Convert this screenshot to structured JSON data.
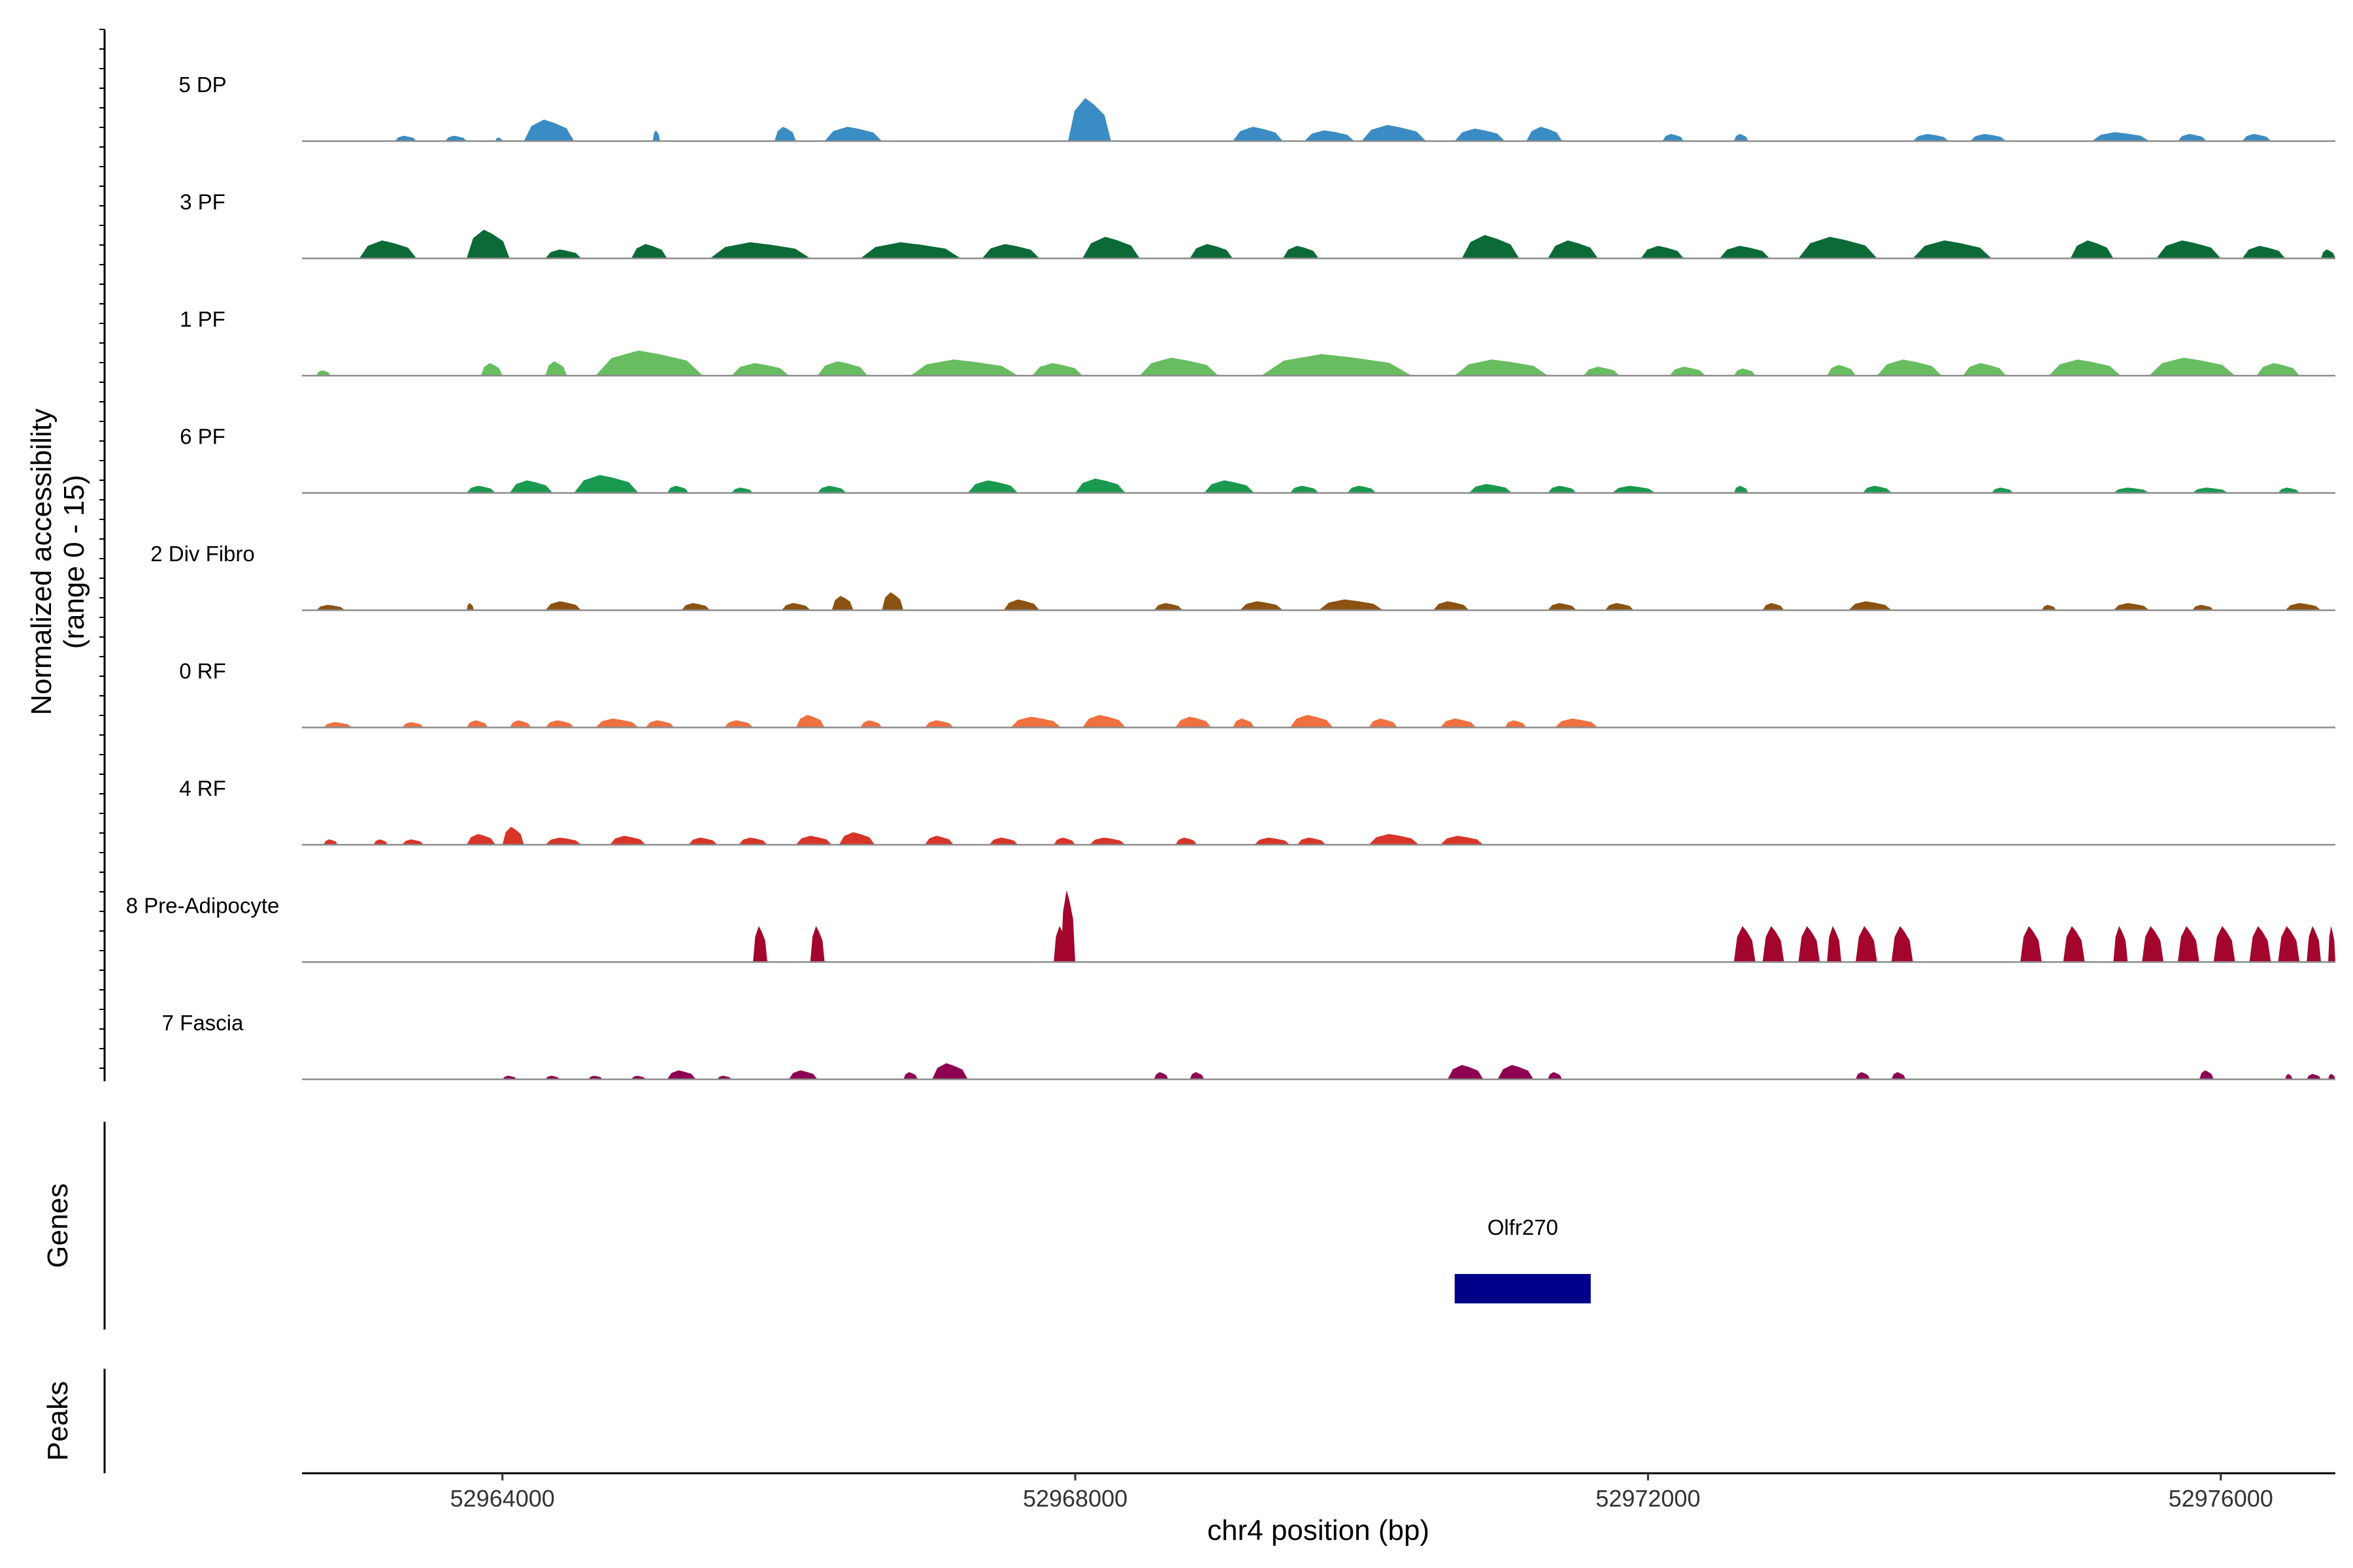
{
  "chart_data": {
    "type": "area",
    "title": "",
    "ylabel": "Normalized accessibility\n(range 0 - 15)",
    "ylabel_lines": [
      "Normalized accessibility",
      "(range 0 - 15)"
    ],
    "ylim": [
      0,
      15
    ],
    "xlabel": "chr4 position (bp)",
    "xlim": [
      52962600,
      52976800
    ],
    "x_ticks": [
      52964000,
      52968000,
      52972000,
      52976000
    ],
    "x_tick_labels": [
      "52964000",
      "52968000",
      "52972000",
      "52976000"
    ],
    "tracks": [
      {
        "name": "5 DP",
        "color": "#3B8CC4",
        "peaks": [
          [
            52963250,
            52963400,
            1.5
          ],
          [
            52963600,
            52963750,
            1.5
          ],
          [
            52963950,
            52964000,
            1.0
          ],
          [
            52964150,
            52964500,
            6.0
          ],
          [
            52965050,
            52965100,
            3.0
          ],
          [
            52965900,
            52966050,
            4.0
          ],
          [
            52966250,
            52966650,
            4.0
          ],
          [
            52967950,
            52968250,
            12.0
          ],
          [
            52969100,
            52969450,
            4.0
          ],
          [
            52969600,
            52969950,
            3.0
          ],
          [
            52970000,
            52970450,
            4.5
          ],
          [
            52970650,
            52971000,
            3.5
          ],
          [
            52971150,
            52971400,
            4.0
          ],
          [
            52972100,
            52972250,
            2.0
          ],
          [
            52972600,
            52972700,
            2.0
          ],
          [
            52973850,
            52974100,
            2.0
          ],
          [
            52974250,
            52974500,
            2.0
          ],
          [
            52975100,
            52975500,
            2.5
          ],
          [
            52975700,
            52975900,
            2.0
          ],
          [
            52976150,
            52976350,
            2.0
          ]
        ]
      },
      {
        "name": "3 PF",
        "color": "#0B6A36",
        "peaks": [
          [
            52963000,
            52963400,
            5.0
          ],
          [
            52963750,
            52964050,
            8.0
          ],
          [
            52964300,
            52964550,
            2.5
          ],
          [
            52964900,
            52965150,
            4.0
          ],
          [
            52965450,
            52966150,
            4.5
          ],
          [
            52966500,
            52967200,
            4.5
          ],
          [
            52967350,
            52967750,
            4.0
          ],
          [
            52968050,
            52968450,
            6.0
          ],
          [
            52968800,
            52969100,
            4.0
          ],
          [
            52969450,
            52969700,
            3.5
          ],
          [
            52970700,
            52971100,
            6.5
          ],
          [
            52971300,
            52971650,
            5.0
          ],
          [
            52971950,
            52972250,
            3.5
          ],
          [
            52972500,
            52972850,
            3.5
          ],
          [
            52973050,
            52973600,
            6.0
          ],
          [
            52973850,
            52974400,
            5.0
          ],
          [
            52974950,
            52975250,
            5.0
          ],
          [
            52975550,
            52976000,
            5.0
          ],
          [
            52976150,
            52976450,
            3.5
          ],
          [
            52976700,
            52976800,
            2.5
          ]
        ]
      },
      {
        "name": "1 PF",
        "color": "#67BD60",
        "peaks": [
          [
            52962700,
            52962800,
            1.5
          ],
          [
            52963850,
            52964000,
            3.5
          ],
          [
            52964300,
            52964450,
            4.0
          ],
          [
            52964650,
            52965400,
            7.0
          ],
          [
            52965600,
            52966000,
            3.5
          ],
          [
            52966200,
            52966550,
            4.0
          ],
          [
            52966850,
            52967600,
            4.5
          ],
          [
            52967700,
            52968050,
            3.5
          ],
          [
            52968450,
            52969000,
            5.0
          ],
          [
            52969300,
            52970350,
            6.0
          ],
          [
            52970650,
            52971300,
            4.5
          ],
          [
            52971550,
            52971800,
            2.5
          ],
          [
            52972150,
            52972400,
            2.5
          ],
          [
            52972600,
            52972750,
            2.0
          ],
          [
            52973250,
            52973450,
            3.0
          ],
          [
            52973600,
            52974050,
            4.5
          ],
          [
            52974200,
            52974500,
            3.5
          ],
          [
            52974800,
            52975300,
            4.5
          ],
          [
            52975500,
            52976100,
            5.0
          ],
          [
            52976250,
            52976550,
            3.5
          ]
        ]
      },
      {
        "name": "6 PF",
        "color": "#1A9A50",
        "peaks": [
          [
            52963750,
            52963950,
            2.0
          ],
          [
            52964050,
            52964350,
            3.5
          ],
          [
            52964500,
            52964950,
            5.0
          ],
          [
            52965150,
            52965300,
            2.0
          ],
          [
            52965600,
            52965750,
            1.5
          ],
          [
            52966200,
            52966400,
            2.0
          ],
          [
            52967250,
            52967600,
            3.5
          ],
          [
            52968000,
            52968350,
            4.0
          ],
          [
            52968900,
            52969250,
            3.5
          ],
          [
            52969500,
            52969700,
            2.0
          ],
          [
            52969900,
            52970100,
            2.0
          ],
          [
            52970750,
            52971050,
            2.5
          ],
          [
            52971300,
            52971500,
            2.0
          ],
          [
            52971750,
            52972050,
            2.0
          ],
          [
            52972600,
            52972700,
            2.0
          ],
          [
            52973500,
            52973700,
            2.0
          ],
          [
            52974400,
            52974550,
            1.5
          ],
          [
            52975250,
            52975500,
            1.5
          ],
          [
            52975800,
            52976050,
            1.5
          ],
          [
            52976400,
            52976550,
            1.5
          ]
        ]
      },
      {
        "name": "2 Div Fibro",
        "color": "#8B5212",
        "peaks": [
          [
            52962700,
            52962900,
            1.5
          ],
          [
            52963750,
            52963800,
            2.0
          ],
          [
            52964300,
            52964550,
            2.5
          ],
          [
            52965250,
            52965450,
            2.0
          ],
          [
            52965950,
            52966150,
            2.0
          ],
          [
            52966300,
            52966450,
            4.0
          ],
          [
            52966650,
            52966800,
            5.0
          ],
          [
            52967500,
            52967750,
            3.0
          ],
          [
            52968550,
            52968750,
            2.0
          ],
          [
            52969150,
            52969450,
            2.5
          ],
          [
            52969700,
            52970150,
            3.0
          ],
          [
            52970500,
            52970750,
            2.5
          ],
          [
            52971300,
            52971500,
            2.0
          ],
          [
            52971700,
            52971900,
            2.0
          ],
          [
            52972800,
            52972950,
            2.0
          ],
          [
            52973400,
            52973700,
            2.5
          ],
          [
            52974750,
            52974850,
            1.5
          ],
          [
            52975250,
            52975500,
            2.0
          ],
          [
            52975800,
            52975950,
            1.5
          ],
          [
            52976450,
            52976700,
            2.0
          ]
        ]
      },
      {
        "name": "0 RF",
        "color": "#F07040",
        "peaks": [
          [
            52962750,
            52962950,
            1.5
          ],
          [
            52963300,
            52963450,
            1.5
          ],
          [
            52963750,
            52963900,
            2.0
          ],
          [
            52964050,
            52964200,
            2.0
          ],
          [
            52964300,
            52964500,
            2.0
          ],
          [
            52964650,
            52964950,
            2.5
          ],
          [
            52965000,
            52965200,
            2.0
          ],
          [
            52965550,
            52965750,
            2.0
          ],
          [
            52966050,
            52966250,
            3.5
          ],
          [
            52966500,
            52966650,
            2.0
          ],
          [
            52966950,
            52967150,
            2.0
          ],
          [
            52967550,
            52967900,
            3.0
          ],
          [
            52968050,
            52968350,
            3.5
          ],
          [
            52968700,
            52968950,
            3.0
          ],
          [
            52969100,
            52969250,
            2.5
          ],
          [
            52969500,
            52969800,
            3.5
          ],
          [
            52970050,
            52970250,
            2.5
          ],
          [
            52970550,
            52970800,
            2.5
          ],
          [
            52971000,
            52971150,
            2.0
          ],
          [
            52971350,
            52971650,
            2.5
          ]
        ]
      },
      {
        "name": "4 RF",
        "color": "#D73528",
        "peaks": [
          [
            52962750,
            52962850,
            1.5
          ],
          [
            52963100,
            52963200,
            1.5
          ],
          [
            52963300,
            52963450,
            1.5
          ],
          [
            52963750,
            52963950,
            3.0
          ],
          [
            52964000,
            52964150,
            5.0
          ],
          [
            52964300,
            52964550,
            2.0
          ],
          [
            52964750,
            52965000,
            2.5
          ],
          [
            52965300,
            52965500,
            2.0
          ],
          [
            52965650,
            52965850,
            2.0
          ],
          [
            52966050,
            52966300,
            2.5
          ],
          [
            52966350,
            52966600,
            3.5
          ],
          [
            52966950,
            52967150,
            2.5
          ],
          [
            52967400,
            52967600,
            2.0
          ],
          [
            52967850,
            52968000,
            2.0
          ],
          [
            52968100,
            52968350,
            2.0
          ],
          [
            52968700,
            52968850,
            2.0
          ],
          [
            52969250,
            52969500,
            2.0
          ],
          [
            52969550,
            52969750,
            2.0
          ],
          [
            52970050,
            52970400,
            3.0
          ],
          [
            52970550,
            52970850,
            2.5
          ]
        ]
      },
      {
        "name": "8 Pre-Adipocyte",
        "color": "#A3052C",
        "peaks": [
          [
            52965750,
            52965850,
            10.0
          ],
          [
            52966150,
            52966250,
            10.0
          ],
          [
            52967850,
            52967950,
            10.0
          ],
          [
            52967900,
            52968000,
            20.0
          ],
          [
            52972600,
            52972750,
            10.0
          ],
          [
            52972800,
            52972950,
            10.0
          ],
          [
            52973050,
            52973200,
            10.0
          ],
          [
            52973250,
            52973350,
            10.0
          ],
          [
            52973450,
            52973600,
            10.0
          ],
          [
            52973700,
            52973850,
            10.0
          ],
          [
            52974600,
            52974750,
            10.0
          ],
          [
            52974900,
            52975050,
            10.0
          ],
          [
            52975250,
            52975350,
            10.0
          ],
          [
            52975450,
            52975600,
            10.0
          ],
          [
            52975700,
            52975850,
            10.0
          ],
          [
            52975950,
            52976100,
            10.0
          ],
          [
            52976200,
            52976350,
            10.0
          ],
          [
            52976400,
            52976550,
            10.0
          ],
          [
            52976600,
            52976700,
            10.0
          ],
          [
            52976750,
            52976800,
            10.0
          ]
        ]
      },
      {
        "name": "7 Fascia",
        "color": "#8E0152",
        "peaks": [
          [
            52965150,
            52965350,
            2.5
          ],
          [
            52966000,
            52966200,
            2.5
          ],
          [
            52966800,
            52966900,
            2.0
          ],
          [
            52967000,
            52967250,
            4.5
          ],
          [
            52968550,
            52968650,
            2.0
          ],
          [
            52968800,
            52968900,
            2.0
          ],
          [
            52970600,
            52970850,
            4.0
          ],
          [
            52970950,
            52971200,
            4.0
          ],
          [
            52971300,
            52971400,
            2.0
          ],
          [
            52973450,
            52973550,
            2.0
          ],
          [
            52973700,
            52973800,
            2.0
          ],
          [
            52975850,
            52975950,
            2.5
          ],
          [
            52976450,
            52976500,
            1.5
          ],
          [
            52976600,
            52976700,
            1.5
          ],
          [
            52976750,
            52976800,
            1.5
          ],
          [
            52964000,
            52964100,
            1.0
          ],
          [
            52964300,
            52964400,
            1.0
          ],
          [
            52964600,
            52964700,
            1.0
          ],
          [
            52964900,
            52965000,
            1.0
          ],
          [
            52965500,
            52965600,
            1.0
          ]
        ]
      }
    ],
    "genes": {
      "label": "Genes",
      "features": [
        {
          "name": "Olfr270",
          "start": 52970650,
          "end": 52971600,
          "color": "#00008B"
        }
      ]
    },
    "peaks_track": {
      "label": "Peaks",
      "features": []
    }
  }
}
